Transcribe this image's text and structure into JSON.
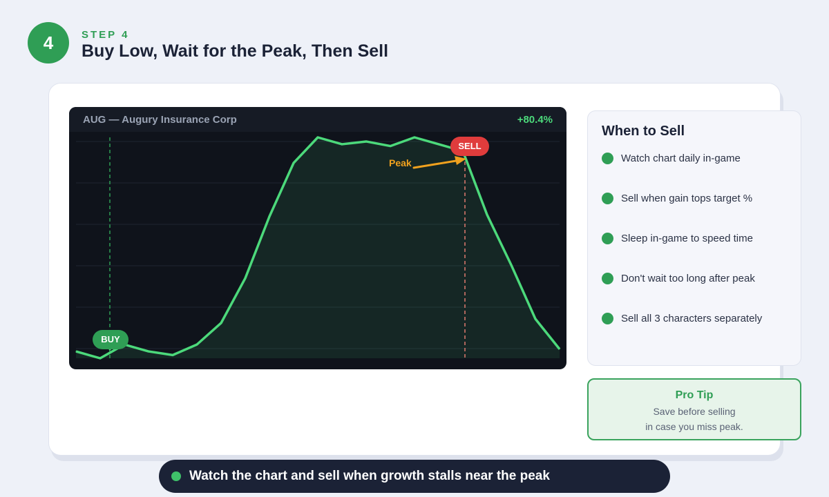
{
  "header": {
    "step_number": "4",
    "step_label": "STEP 4",
    "title": "Buy Low, Wait for the Peak, Then Sell"
  },
  "chart": {
    "ticker": "AUG — Augury Insurance Corp",
    "gain": "+80.4%",
    "buy_label": "BUY",
    "sell_label": "SELL",
    "peak_label": "Peak",
    "line_color": "#4cd97b",
    "buy_color": "#2f9e55",
    "sell_color": "#e03c3c",
    "peak_color": "#f0a11e"
  },
  "chart_data": {
    "type": "line",
    "title": "AUG — Augury Insurance Corp",
    "x": [
      0,
      1,
      2,
      3,
      4,
      5,
      6,
      7,
      8,
      9,
      10,
      11,
      12,
      13,
      14,
      15,
      16,
      17,
      18,
      19,
      20
    ],
    "values": [
      1.5,
      0,
      3,
      1.5,
      0.7,
      3,
      7.7,
      17.5,
      31,
      42.7,
      48.3,
      46.8,
      47.4,
      46.4,
      48.3,
      46.8,
      45.3,
      31.4,
      20.4,
      8.6,
      2
    ],
    "buy_index": 1,
    "sell_index": 16,
    "xlabel": "",
    "ylabel": "",
    "grid": true
  },
  "sidebar": {
    "title": "When to Sell",
    "items": [
      "Watch chart daily in-game",
      "Sell when gain tops target %",
      "Sleep in-game to speed time",
      "Don't wait too long after peak",
      "Sell all 3 characters separately"
    ]
  },
  "pro_tip": {
    "title": "Pro Tip",
    "line1": "Save before selling",
    "line2": "in case you miss peak."
  },
  "footer": {
    "text": "Watch the chart and sell when growth stalls near the peak"
  }
}
